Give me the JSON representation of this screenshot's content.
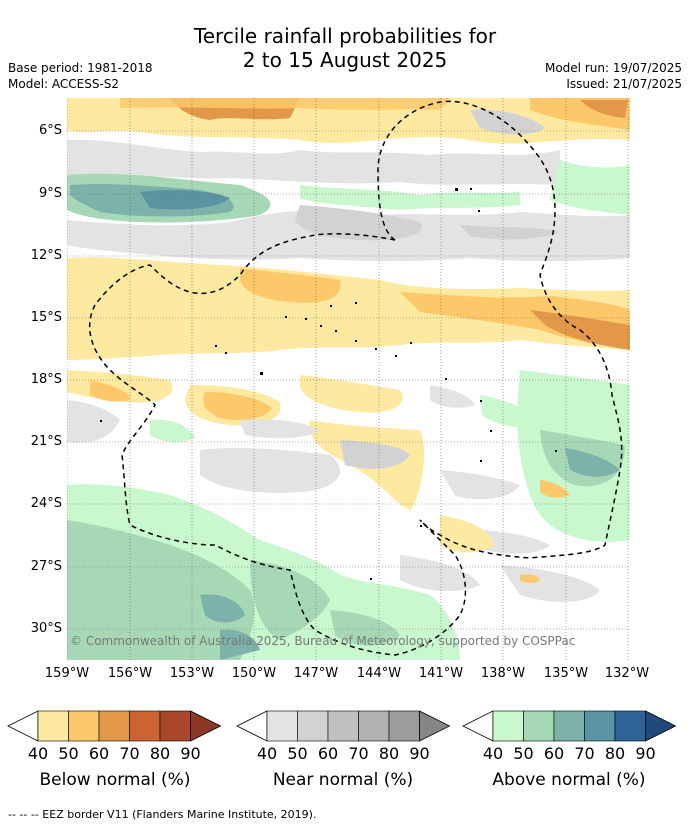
{
  "title_line1": "Tercile rainfall probabilities for",
  "title_line2": "2 to 15 August 2025",
  "base_period": "Base period: 1981-2018",
  "model": "Model: ACCESS-S2",
  "model_run": "Model run: 19/07/2025",
  "issued": "Issued: 21/07/2025",
  "copyright": "© Commonwealth of Australia 2025, Bureau of Meteorology, supported by COSPPac",
  "lat_labels": [
    "6°S",
    "9°S",
    "12°S",
    "15°S",
    "18°S",
    "21°S",
    "24°S",
    "27°S",
    "30°S"
  ],
  "lon_labels": [
    "159°W",
    "156°W",
    "153°W",
    "150°W",
    "147°W",
    "144°W",
    "141°W",
    "138°W",
    "135°W",
    "132°W"
  ],
  "legend": {
    "ticks": [
      "40",
      "50",
      "60",
      "70",
      "80",
      "90"
    ],
    "below": {
      "caption": "Below normal (%)",
      "colors": [
        "#fde9a0",
        "#fcc86a",
        "#e29848",
        "#cb6432",
        "#a9472a",
        "#8b3721"
      ]
    },
    "near": {
      "caption": "Near normal (%)",
      "colors": [
        "#e3e3e3",
        "#d2d2d2",
        "#c1c1c1",
        "#b1b1b1",
        "#9c9c9c",
        "#858585"
      ]
    },
    "above": {
      "caption": "Above normal (%)",
      "colors": [
        "#c9f7ce",
        "#a6d8b6",
        "#7db2aa",
        "#5a93a1",
        "#2d6396",
        "#1f4a7a"
      ]
    }
  },
  "footnote": "--  --  -- EEZ border V11 (Flanders Marine Institute, 2019)."
}
